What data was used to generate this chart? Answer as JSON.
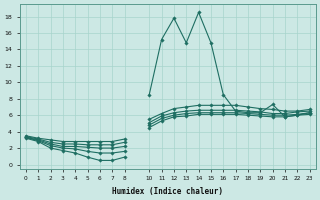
{
  "xlabel": "Humidex (Indice chaleur)",
  "bg_color": "#cce8e4",
  "line_color": "#1e6e62",
  "grid_color": "#a8d4cc",
  "x_ticks_left": [
    0,
    1,
    2,
    3,
    4,
    5,
    6,
    7,
    8
  ],
  "x_ticks_right": [
    10,
    11,
    12,
    13,
    14,
    15,
    16,
    17,
    18,
    19,
    20,
    21,
    22,
    23
  ],
  "yticks": [
    0,
    2,
    4,
    6,
    8,
    10,
    12,
    14,
    16,
    18
  ],
  "ylim": [
    -0.5,
    19.5
  ],
  "xlim": [
    -0.5,
    23.5
  ],
  "lines": [
    {
      "segments": [
        {
          "x": [
            0,
            1,
            2,
            3,
            4,
            5,
            6,
            7,
            8
          ],
          "y": [
            3.2,
            2.8,
            2.0,
            1.7,
            1.4,
            0.9,
            0.5,
            0.5,
            0.9
          ]
        },
        {
          "x": [
            10,
            11,
            12,
            13,
            14,
            15,
            16,
            17,
            18,
            19,
            20,
            21,
            22,
            23
          ],
          "y": [
            8.5,
            15.2,
            17.8,
            14.8,
            18.5,
            14.8,
            8.5,
            6.5,
            6.3,
            6.3,
            7.3,
            5.8,
            6.0,
            6.3
          ]
        }
      ]
    },
    {
      "segments": [
        {
          "x": [
            0,
            1,
            2,
            3,
            4,
            5,
            6,
            7,
            8
          ],
          "y": [
            3.3,
            2.9,
            2.3,
            2.0,
            1.9,
            1.6,
            1.4,
            1.4,
            1.6
          ]
        },
        {
          "x": [
            10,
            11,
            12,
            13,
            14,
            15,
            16,
            17,
            18,
            19,
            20,
            21,
            22,
            23
          ],
          "y": [
            4.5,
            5.3,
            5.8,
            5.9,
            6.1,
            6.1,
            6.1,
            6.1,
            6.0,
            5.9,
            5.8,
            5.8,
            6.0,
            6.1
          ]
        }
      ]
    },
    {
      "segments": [
        {
          "x": [
            0,
            1,
            2,
            3,
            4,
            5,
            6,
            7,
            8
          ],
          "y": [
            3.3,
            3.0,
            2.5,
            2.2,
            2.2,
            2.1,
            2.0,
            2.0,
            2.2
          ]
        },
        {
          "x": [
            10,
            11,
            12,
            13,
            14,
            15,
            16,
            17,
            18,
            19,
            20,
            21,
            22,
            23
          ],
          "y": [
            4.8,
            5.6,
            6.0,
            6.2,
            6.3,
            6.3,
            6.3,
            6.3,
            6.2,
            6.1,
            6.0,
            6.0,
            6.1,
            6.3
          ]
        }
      ]
    },
    {
      "segments": [
        {
          "x": [
            0,
            1,
            2,
            3,
            4,
            5,
            6,
            7,
            8
          ],
          "y": [
            3.4,
            3.1,
            2.7,
            2.5,
            2.5,
            2.4,
            2.4,
            2.4,
            2.7
          ]
        },
        {
          "x": [
            10,
            11,
            12,
            13,
            14,
            15,
            16,
            17,
            18,
            19,
            20,
            21,
            22,
            23
          ],
          "y": [
            5.1,
            5.9,
            6.3,
            6.5,
            6.6,
            6.6,
            6.6,
            6.6,
            6.5,
            6.4,
            6.2,
            6.2,
            6.4,
            6.5
          ]
        }
      ]
    },
    {
      "segments": [
        {
          "x": [
            0,
            1,
            2,
            3,
            4,
            5,
            6,
            7,
            8
          ],
          "y": [
            3.5,
            3.2,
            3.0,
            2.8,
            2.8,
            2.8,
            2.8,
            2.8,
            3.1
          ]
        },
        {
          "x": [
            10,
            11,
            12,
            13,
            14,
            15,
            16,
            17,
            18,
            19,
            20,
            21,
            22,
            23
          ],
          "y": [
            5.5,
            6.2,
            6.8,
            7.0,
            7.2,
            7.2,
            7.2,
            7.2,
            7.0,
            6.8,
            6.7,
            6.5,
            6.5,
            6.7
          ]
        }
      ]
    }
  ]
}
